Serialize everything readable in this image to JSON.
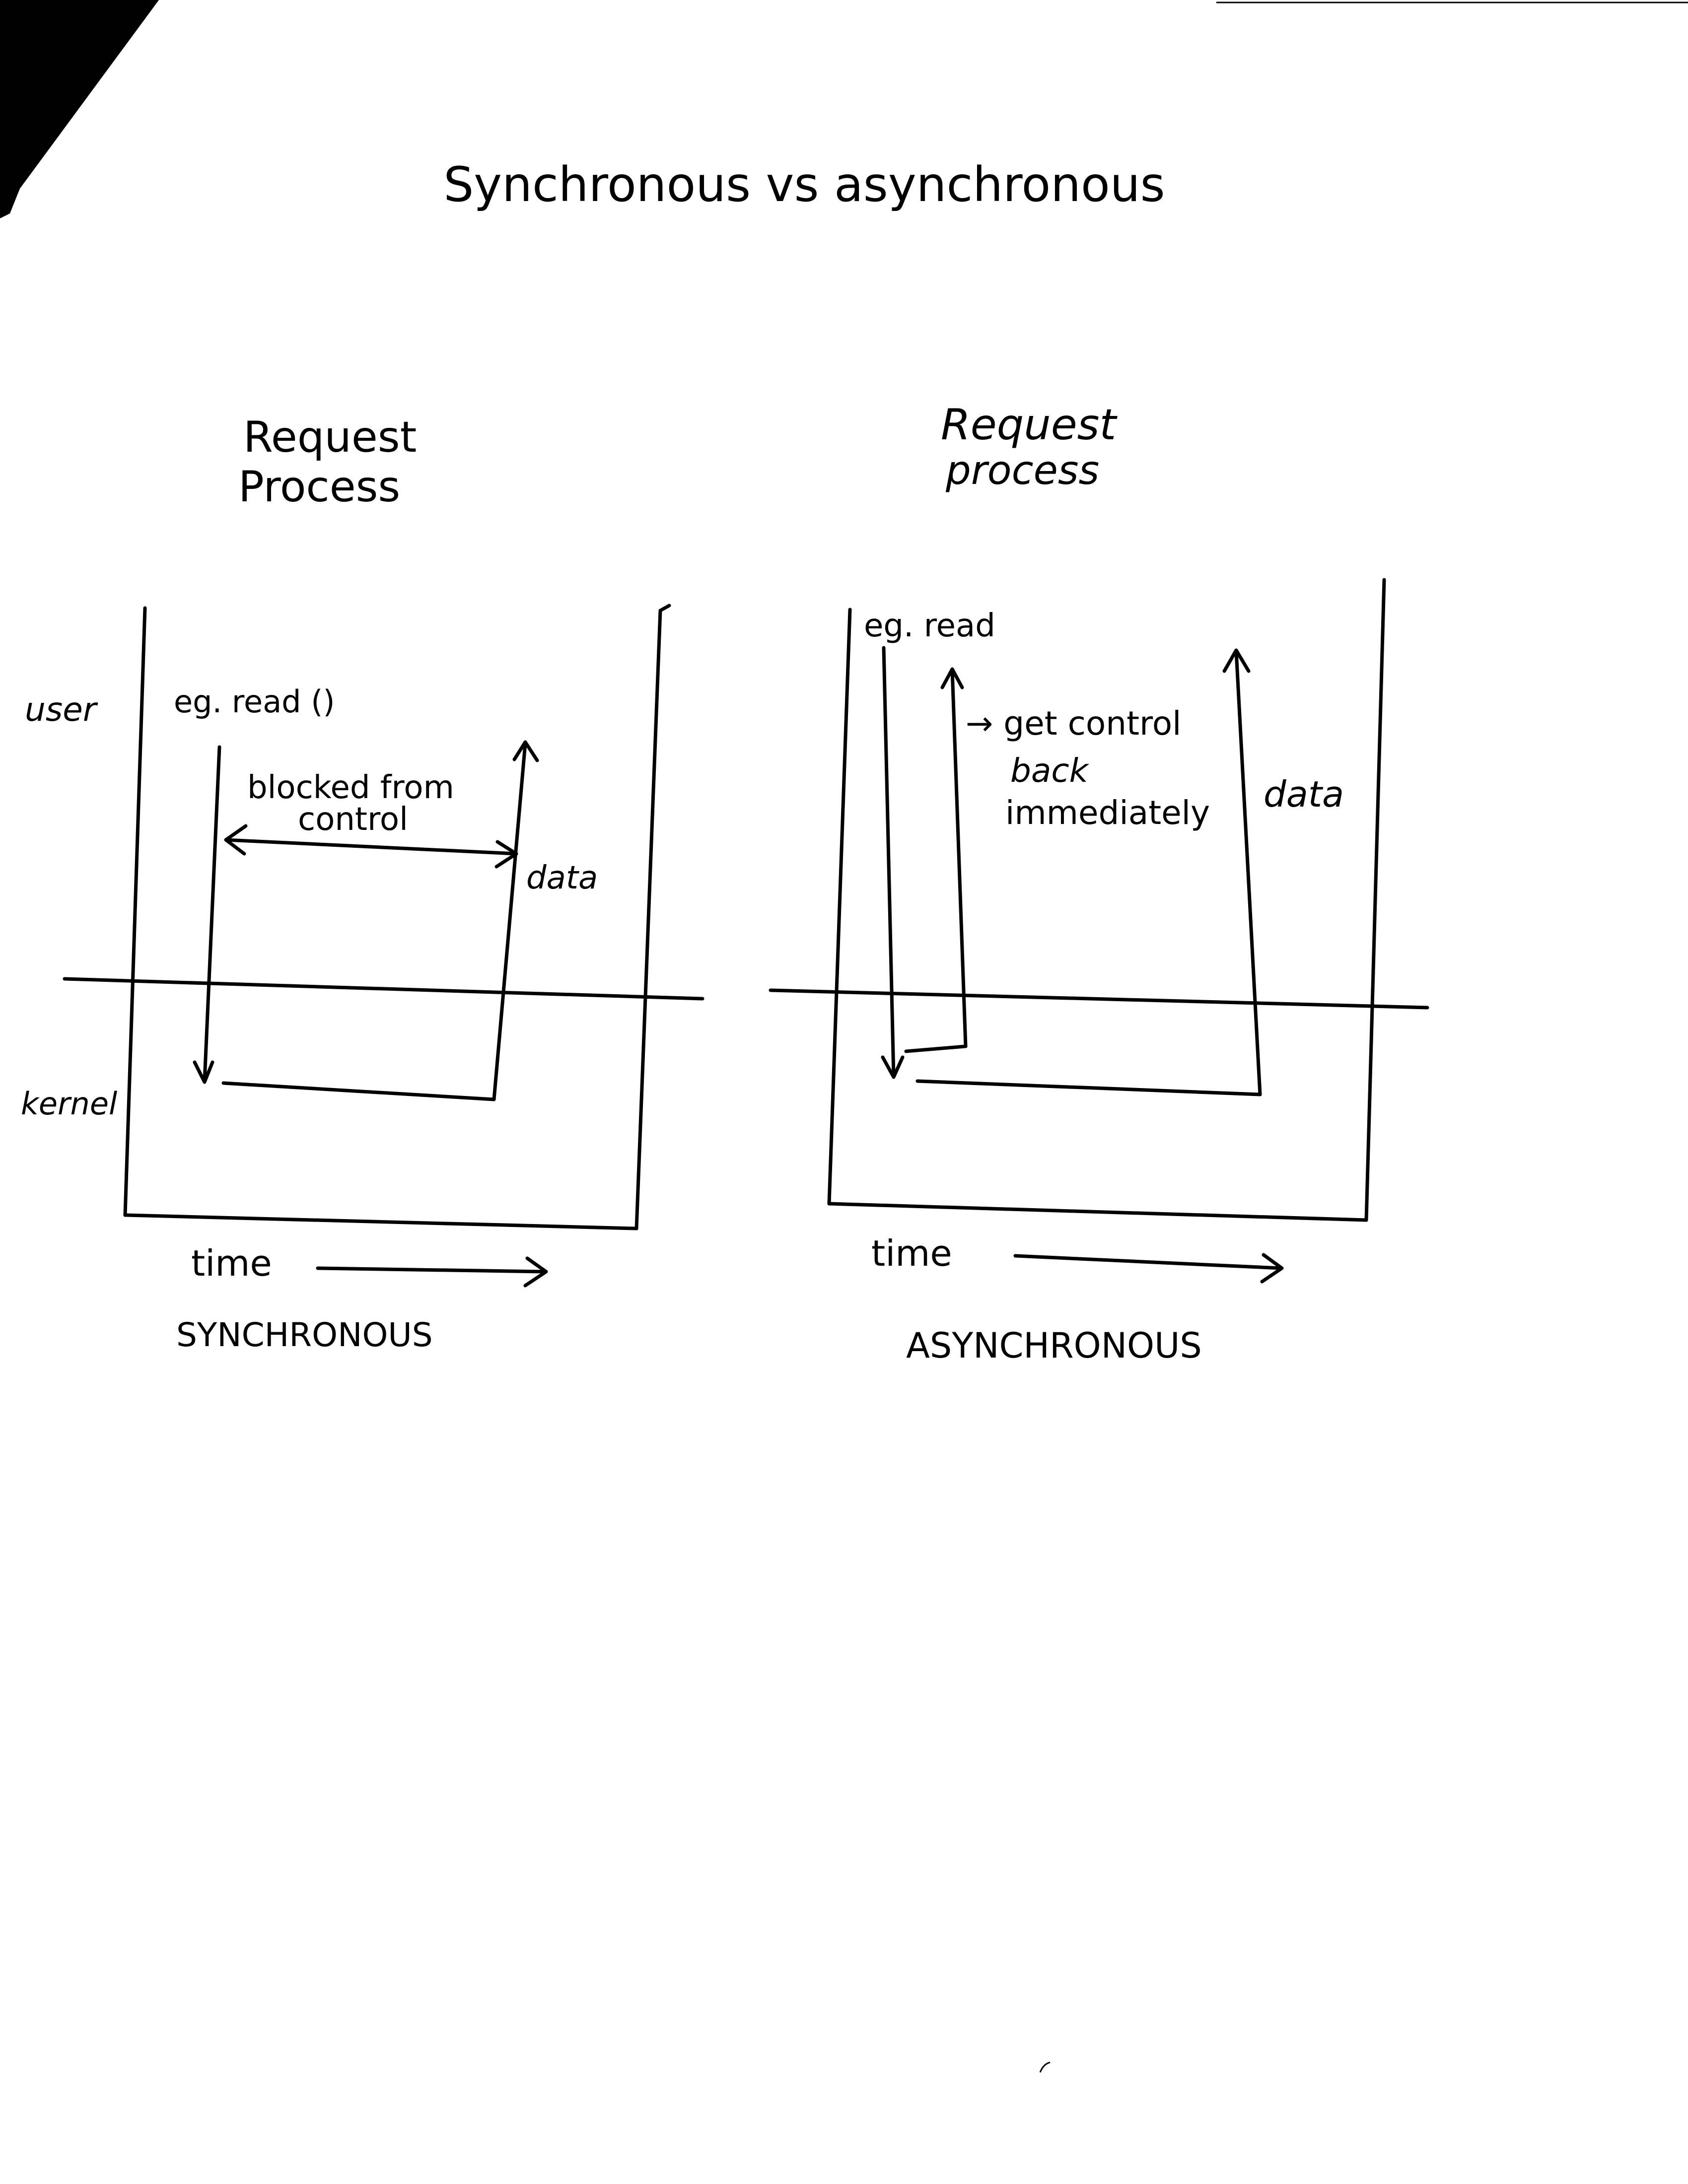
{
  "title": "Synchronous vs asynchronous",
  "layer_labels": {
    "user": "user",
    "kernel": "kernel"
  },
  "synchronous": {
    "header_line1": "Request",
    "header_line2": "Process",
    "call_label": "eg. read ()",
    "blocked_line1": "blocked from",
    "blocked_line2": "control",
    "data_label": "data",
    "time_label": "time",
    "caption": "SYNCHRONOUS"
  },
  "asynchronous": {
    "header_line1": "Request",
    "header_line2": "process",
    "call_label": "eg. read",
    "note_line1": "→ get control",
    "note_line2": "back",
    "note_line3": "immediately",
    "data_label": "data",
    "time_label": "time",
    "caption": "ASYNCHRONOUS"
  }
}
